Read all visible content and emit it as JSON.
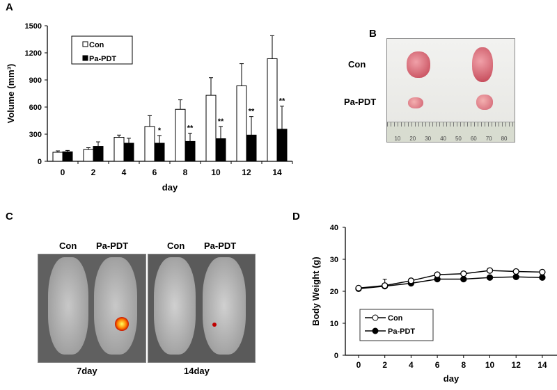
{
  "panels": {
    "a": "A",
    "b": "B",
    "c": "C",
    "d": "D"
  },
  "photo_b": {
    "row1": "Con",
    "row2": "Pa-PDT",
    "ruler_ticks": [
      "10",
      "20",
      "30",
      "40",
      "50",
      "60",
      "70",
      "80"
    ]
  },
  "photo_c": {
    "group1_con": "Con",
    "group1_pdt": "Pa-PDT",
    "group2_con": "Con",
    "group2_pdt": "Pa-PDT",
    "caption1": "7day",
    "caption2": "14day"
  },
  "chart_data": [
    {
      "type": "bar",
      "title": "",
      "xlabel": "day",
      "ylabel": "Volume (mm³)",
      "ylim": [
        0,
        1500
      ],
      "yticks": [
        "0",
        "300",
        "600",
        "900",
        "1200",
        "1500"
      ],
      "categories": [
        "0",
        "2",
        "4",
        "6",
        "8",
        "10",
        "12",
        "14"
      ],
      "series": [
        {
          "name": "Con",
          "color": "#ffffff",
          "values": [
            100,
            130,
            265,
            385,
            575,
            730,
            835,
            1135
          ],
          "error_upper": [
            115,
            150,
            290,
            505,
            680,
            925,
            1080,
            1390
          ]
        },
        {
          "name": "Pa-PDT",
          "color": "#000000",
          "values": [
            105,
            165,
            200,
            200,
            220,
            250,
            290,
            355
          ],
          "error_upper": [
            120,
            215,
            255,
            285,
            310,
            385,
            495,
            610
          ]
        }
      ],
      "annotations": [
        "",
        "",
        "",
        "*",
        "**",
        "**",
        "**",
        "**"
      ],
      "legend": "top-left"
    },
    {
      "type": "line",
      "title": "",
      "xlabel": "day",
      "ylabel": "Body Weight (g)",
      "ylim": [
        0,
        40
      ],
      "yticks": [
        "0",
        "10",
        "20",
        "30",
        "40"
      ],
      "x": [
        "0",
        "2",
        "4",
        "6",
        "8",
        "10",
        "12",
        "14"
      ],
      "series": [
        {
          "name": "Con",
          "marker": "open-circle",
          "values": [
            21,
            21.8,
            23.3,
            25.2,
            25.5,
            26.5,
            26.2,
            26
          ]
        },
        {
          "name": "Pa-PDT",
          "marker": "filled-circle",
          "values": [
            20.8,
            21.6,
            22.5,
            23.8,
            23.8,
            24.3,
            24.5,
            24.3
          ]
        }
      ],
      "legend": "bottom-left"
    }
  ]
}
